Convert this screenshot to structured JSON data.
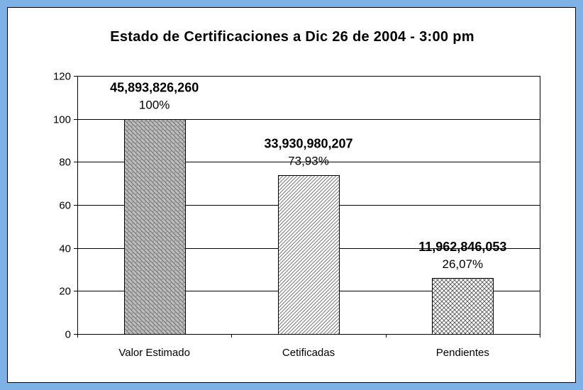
{
  "chart_data": {
    "type": "bar",
    "title": "Estado de Certificaciones a Dic 26 de 2004 - 3:00 pm",
    "xlabel": "",
    "ylabel": "",
    "ylim": [
      0,
      120
    ],
    "yticks": [
      0,
      20,
      40,
      60,
      80,
      100,
      120
    ],
    "categories": [
      "Valor Estimado",
      "Cetificadas",
      "Pendientes"
    ],
    "values": [
      100,
      73.93,
      26.07
    ],
    "data_labels": [
      {
        "amount": "45,893,826,260",
        "percent": "100%"
      },
      {
        "amount": "33,930,980,207",
        "percent": "73,93%"
      },
      {
        "amount": "11,962,846,053",
        "percent": "26,07%"
      }
    ],
    "fill_patterns": [
      "weave",
      "diagonal",
      "crosshatch"
    ],
    "grid": true,
    "legend": "none",
    "colors": {
      "border": "#7eb2e6",
      "bar_fill": "#ffffff",
      "weave_fill": "#bdbdbd",
      "pattern_ink": "#555555",
      "grid": "#000000"
    }
  }
}
